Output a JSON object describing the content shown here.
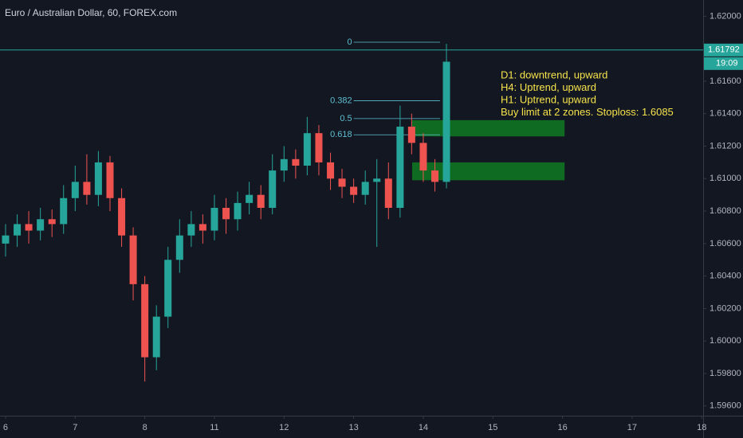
{
  "chart_data": {
    "type": "candlestick",
    "title": "Euro / Australian Dollar, 60, FOREX.com",
    "x": [
      0,
      0.167,
      0.333,
      0.5,
      0.667,
      0.833,
      1,
      1.167,
      1.333,
      1.5,
      1.667,
      1.833,
      2,
      2.167,
      2.333,
      2.5,
      2.667,
      2.833,
      3,
      3.167,
      3.333,
      3.5,
      3.667,
      3.833,
      4,
      4.167,
      4.333,
      4.5,
      4.667,
      4.833,
      5,
      5.167,
      5.333,
      5.5,
      5.667,
      5.833,
      6,
      6.167,
      6.333
    ],
    "open": [
      1.606,
      1.6065,
      1.6072,
      1.6068,
      1.6075,
      1.6072,
      1.6088,
      1.6098,
      1.609,
      1.611,
      1.6088,
      1.6065,
      1.6035,
      1.599,
      1.6015,
      1.605,
      1.6065,
      1.6072,
      1.6068,
      1.6082,
      1.6075,
      1.6085,
      1.609,
      1.6082,
      1.6105,
      1.6112,
      1.6108,
      1.6128,
      1.611,
      1.61,
      1.6095,
      1.609,
      1.6098,
      1.61,
      1.6082,
      1.6132,
      1.6122,
      1.6105,
      1.6098
    ],
    "high": [
      1.6072,
      1.6078,
      1.608,
      1.6082,
      1.6081,
      1.6096,
      1.6108,
      1.6115,
      1.6117,
      1.6114,
      1.6094,
      1.607,
      1.604,
      1.6022,
      1.6058,
      1.6075,
      1.608,
      1.6078,
      1.609,
      1.6088,
      1.6092,
      1.6098,
      1.6096,
      1.6115,
      1.612,
      1.6118,
      1.6138,
      1.6133,
      1.6116,
      1.6106,
      1.61,
      1.6105,
      1.6112,
      1.611,
      1.6145,
      1.614,
      1.6128,
      1.6112,
      1.6183
    ],
    "low": [
      1.6052,
      1.6058,
      1.606,
      1.6062,
      1.6064,
      1.6066,
      1.608,
      1.6084,
      1.6083,
      1.608,
      1.6058,
      1.6025,
      1.5975,
      1.5982,
      1.6008,
      1.6042,
      1.6058,
      1.606,
      1.6062,
      1.6066,
      1.6068,
      1.6078,
      1.6075,
      1.6078,
      1.6098,
      1.61,
      1.6102,
      1.6102,
      1.6093,
      1.6088,
      1.6085,
      1.6084,
      1.6058,
      1.6075,
      1.6076,
      1.6115,
      1.6098,
      1.6092,
      1.6094
    ],
    "close": [
      1.6065,
      1.6072,
      1.6068,
      1.6075,
      1.6072,
      1.6088,
      1.6098,
      1.609,
      1.611,
      1.6088,
      1.6065,
      1.6035,
      1.599,
      1.6015,
      1.605,
      1.6065,
      1.6072,
      1.6068,
      1.6082,
      1.6075,
      1.6085,
      1.609,
      1.6082,
      1.6105,
      1.6112,
      1.6108,
      1.6128,
      1.611,
      1.61,
      1.6095,
      1.609,
      1.6098,
      1.61,
      1.6082,
      1.6132,
      1.6122,
      1.6105,
      1.6098,
      1.6172
    ],
    "up_color": "#26a69a",
    "down_color": "#ef5350",
    "xlim": [
      -0.08,
      10.02
    ],
    "xticks": [
      {
        "value": 0,
        "label": "6"
      },
      {
        "value": 1,
        "label": "7"
      },
      {
        "value": 2,
        "label": "8"
      },
      {
        "value": 3,
        "label": "11"
      },
      {
        "value": 4,
        "label": "12"
      },
      {
        "value": 5,
        "label": "13"
      },
      {
        "value": 6,
        "label": "14"
      },
      {
        "value": 7,
        "label": "15"
      },
      {
        "value": 8,
        "label": "16"
      },
      {
        "value": 9,
        "label": "17"
      },
      {
        "value": 10,
        "label": "18"
      }
    ],
    "ylim": [
      1.5954,
      1.621
    ],
    "yticks": [
      {
        "value": 1.596,
        "label": "1.59600"
      },
      {
        "value": 1.598,
        "label": "1.59800"
      },
      {
        "value": 1.6,
        "label": "1.60000"
      },
      {
        "value": 1.602,
        "label": "1.60200"
      },
      {
        "value": 1.604,
        "label": "1.60400"
      },
      {
        "value": 1.606,
        "label": "1.60600"
      },
      {
        "value": 1.608,
        "label": "1.60800"
      },
      {
        "value": 1.61,
        "label": "1.61000"
      },
      {
        "value": 1.612,
        "label": "1.61200"
      },
      {
        "value": 1.614,
        "label": "1.61400"
      },
      {
        "value": 1.616,
        "label": "1.61600"
      },
      {
        "value": 1.618,
        "label": "1.61800"
      },
      {
        "value": 1.62,
        "label": "1.62000"
      }
    ],
    "grid": false,
    "last_price": 1.61792,
    "countdown": "19:09",
    "fib": {
      "levels": [
        0,
        0.382,
        0.5,
        0.618
      ],
      "prices": [
        1.6184,
        1.6148,
        1.6137,
        1.6127
      ],
      "start": 5.0,
      "end": 6.24
    },
    "zones": [
      {
        "low": 1.6126,
        "high": 1.6136,
        "start": 5.84,
        "end": 8.03
      },
      {
        "low": 1.6099,
        "high": 1.611,
        "start": 5.84,
        "end": 8.03
      }
    ],
    "zone_color": "#0f6b22",
    "annotations": [
      "D1: downtrend, upward",
      "H4: Uptrend, upward",
      "H1: Uptrend, upward",
      "Buy limit at 2 zones. Stoploss: 1.6085"
    ]
  }
}
